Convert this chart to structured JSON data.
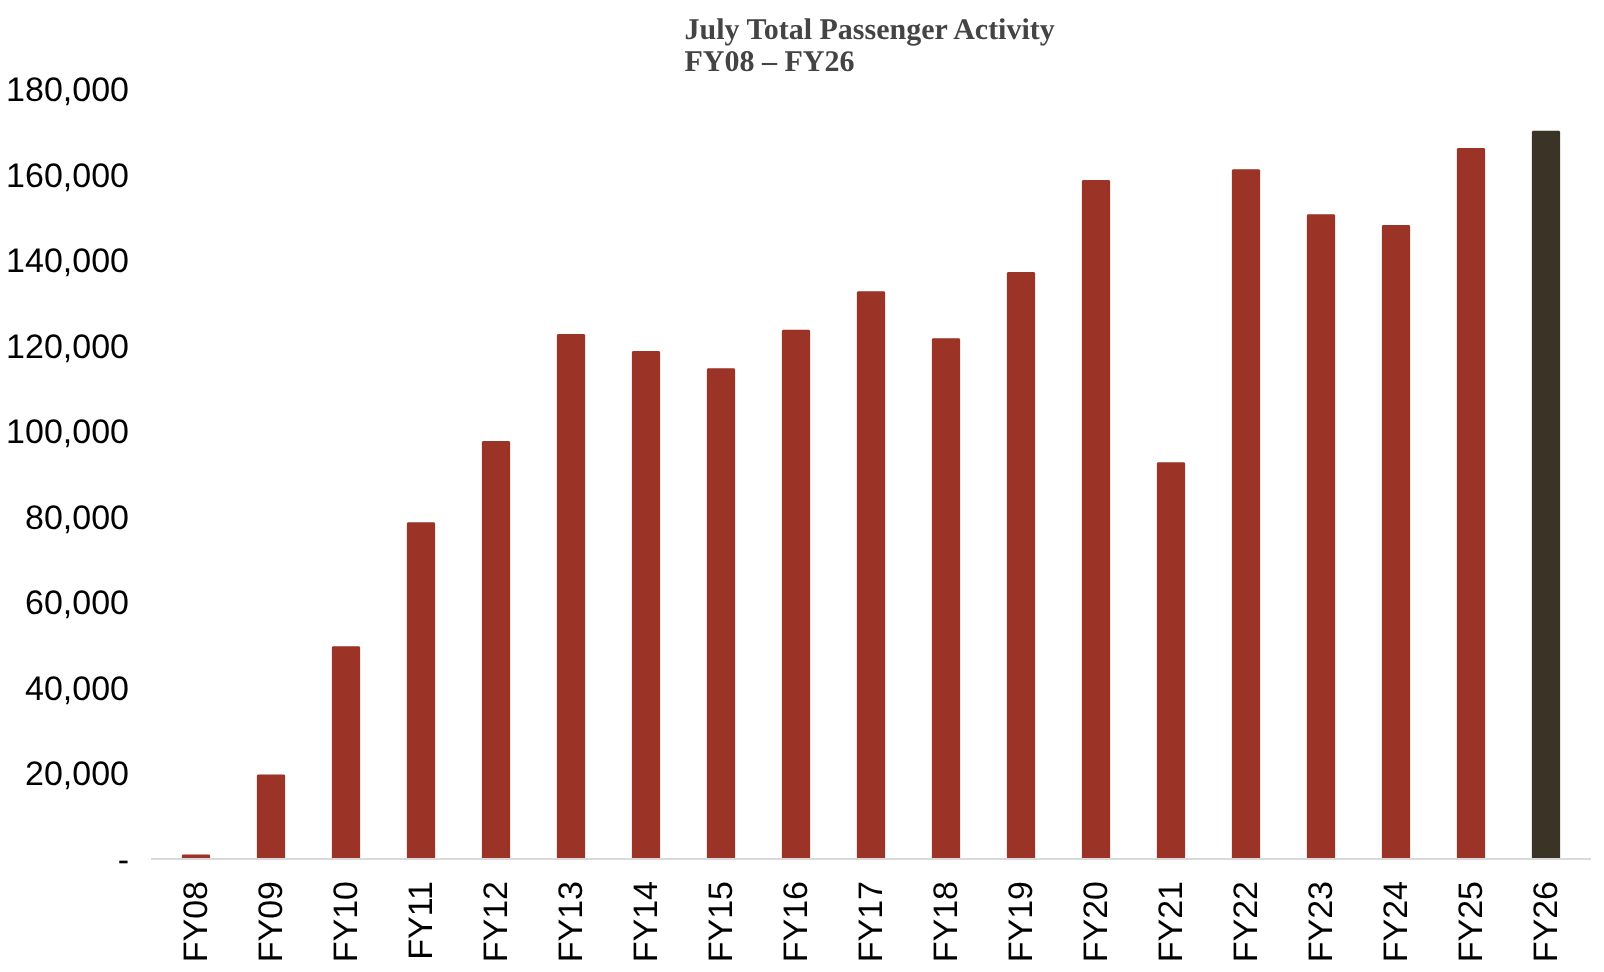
{
  "chart_data": {
    "type": "bar",
    "title": "July Total Passenger Activity\nFY08 – FY26",
    "categories": [
      "FY08",
      "FY09",
      "FY10",
      "FY11",
      "FY12",
      "FY13",
      "FY14",
      "FY15",
      "FY16",
      "FY17",
      "FY18",
      "FY19",
      "FY20",
      "FY21",
      "FY22",
      "FY23",
      "FY24",
      "FY25",
      "FY26"
    ],
    "values": [
      800,
      19500,
      49500,
      78500,
      97500,
      122500,
      118500,
      114500,
      123500,
      132500,
      121500,
      137000,
      158500,
      92500,
      161000,
      150500,
      148000,
      166000,
      170000
    ],
    "colors": [
      "#9b3426",
      "#9b3426",
      "#9b3426",
      "#9b3426",
      "#9b3426",
      "#9b3426",
      "#9b3426",
      "#9b3426",
      "#9b3426",
      "#9b3426",
      "#9b3426",
      "#9b3426",
      "#9b3426",
      "#9b3426",
      "#9b3426",
      "#9b3426",
      "#9b3426",
      "#9b3426",
      "#3b3426"
    ],
    "ylim": [
      0,
      180000
    ],
    "yticks": [
      {
        "value": 0,
        "label": "-"
      },
      {
        "value": 20000,
        "label": "20,000"
      },
      {
        "value": 40000,
        "label": "40,000"
      },
      {
        "value": 60000,
        "label": "60,000"
      },
      {
        "value": 80000,
        "label": "80,000"
      },
      {
        "value": 100000,
        "label": "100,000"
      },
      {
        "value": 120000,
        "label": "120,000"
      },
      {
        "value": 140000,
        "label": "140,000"
      },
      {
        "value": 160000,
        "label": "160,000"
      },
      {
        "value": 180000,
        "label": "180,000"
      }
    ],
    "grid": false
  }
}
